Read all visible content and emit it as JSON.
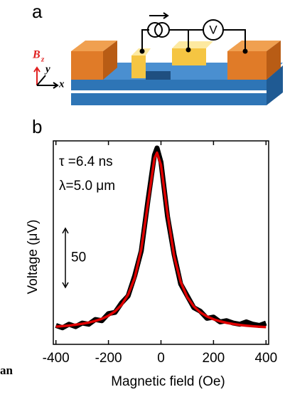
{
  "panel_a": {
    "label": "a",
    "field": "B",
    "field_sub": "z",
    "axis_y": "y",
    "axis_x": "x",
    "voltmeter": "V"
  },
  "fragment": "an",
  "chart_data": {
    "type": "line",
    "panel_label": "b",
    "xlabel": "Magnetic field (Oe)",
    "ylabel": "Voltage (μV)",
    "annotations": [
      "τ =6.4 ns",
      "λ=5.0 μm"
    ],
    "scale_bar": 50,
    "x": [
      -400,
      -375,
      -350,
      -325,
      -300,
      -275,
      -250,
      -225,
      -200,
      -175,
      -150,
      -125,
      -100,
      -75,
      -50,
      -25,
      -15,
      0,
      25,
      50,
      75,
      100,
      125,
      150,
      175,
      200,
      225,
      250,
      275,
      300,
      325,
      350,
      375,
      400
    ],
    "series": [
      {
        "color": "#000000",
        "values": [
          16,
          14,
          17,
          15,
          18,
          17,
          21,
          20,
          26,
          27,
          35,
          41,
          58,
          79,
          121,
          160,
          166,
          154,
          108,
          76,
          51,
          41,
          31,
          28,
          22,
          23,
          19,
          20,
          18,
          17,
          19,
          17,
          16,
          18
        ]
      },
      {
        "color": "#e00000",
        "values": [
          15.0,
          15.4,
          15.9,
          16.6,
          17.4,
          18.4,
          19.8,
          21.6,
          24.2,
          27.9,
          33.4,
          42.0,
          56.2,
          80.5,
          118.8,
          157.2,
          162.0,
          151.6,
          110.1,
          74.6,
          52.8,
          39.9,
          32.1,
          27.0,
          23.6,
          21.2,
          19.5,
          18.2,
          17.2,
          16.4,
          15.8,
          15.3,
          14.9,
          14.6
        ]
      }
    ],
    "xlim": [
      -410,
      410
    ],
    "xticks": [
      -400,
      -200,
      0,
      200,
      400
    ],
    "ylim": [
      0,
      172
    ]
  }
}
